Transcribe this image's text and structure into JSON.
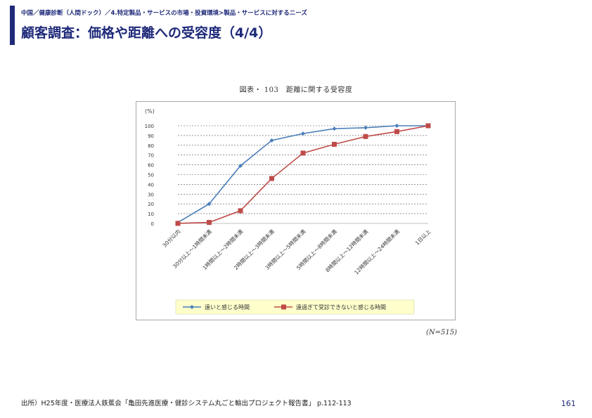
{
  "header": {
    "breadcrumb": "中国／健康診断（人間ドック）／4.特定製品・サービスの市場・投資環境>製品・サービスに対するニーズ",
    "title": "顧客調査：価格や距離への受容度（4/4）"
  },
  "footer": {
    "source": "出所）H25年度・医療法人鉄蕉会「亀田先進医療・健診システム丸ごと輸出プロジェクト報告書」 p.112-113",
    "page_number": "161"
  },
  "note": "(N=515)",
  "colors": {
    "accent": "#1f2a7a",
    "series1": "#4a7ebb",
    "series2": "#be4b48",
    "legend_bg": "#ffffcc"
  },
  "chart_data": {
    "type": "line",
    "title": "図表・ 103　距離に関する受容度",
    "ylabel": "(%)",
    "xlabel": "",
    "ylim": [
      0,
      100
    ],
    "yticks": [
      0,
      10,
      20,
      30,
      40,
      50,
      60,
      70,
      80,
      90,
      100
    ],
    "grid": true,
    "legend_position": "bottom",
    "categories": [
      "30分以内",
      "30分以上～1時間未満",
      "1時間以上～2時間未満",
      "2時間以上～3時間未満",
      "3時間以上～5時間未満",
      "5時間以上～8時間未満",
      "8時間以上～12時間未満",
      "12時間以上～24時間未満",
      "1日以上"
    ],
    "series": [
      {
        "name": "遠いと感じる時間",
        "marker": "diamond",
        "values": [
          1,
          20,
          59,
          85,
          92,
          97,
          98,
          100,
          100
        ]
      },
      {
        "name": "遠過ぎて受診できないと感じる時間",
        "marker": "square",
        "values": [
          0,
          1,
          13,
          46,
          72,
          81,
          89,
          94,
          100
        ]
      }
    ]
  }
}
